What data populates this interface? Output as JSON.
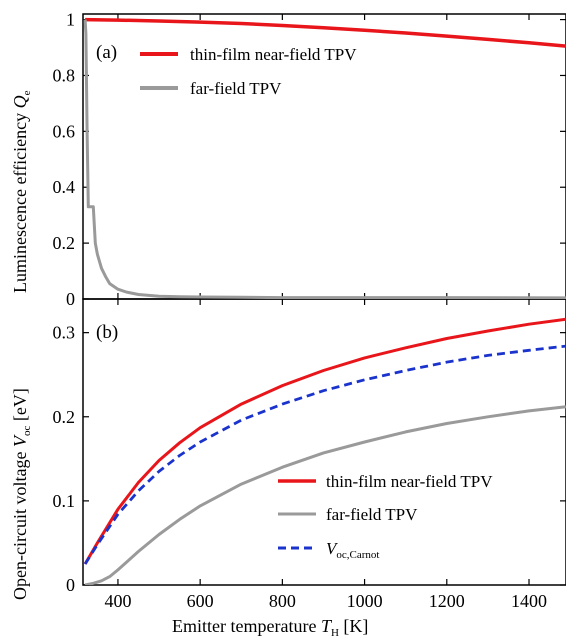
{
  "figure": {
    "xlabel_main": "Emitter temperature ",
    "xlabel_var": "T",
    "xlabel_sub": "H",
    "xlabel_unit": " [K]"
  },
  "colors": {
    "near_field": "#e8161b",
    "far_field": "#9a9a9a",
    "carnot": "#1a33cc",
    "axis": "#000000"
  },
  "chart_data": [
    {
      "type": "line",
      "panel_label": "(a)",
      "ylabel_main": "Luminescence efficiency ",
      "ylabel_var": "Q",
      "ylabel_sub": "e",
      "xlim": [
        315,
        1490
      ],
      "ylim": [
        0,
        1.02
      ],
      "yticks": [
        0,
        0.2,
        0.4,
        0.6,
        0.8,
        1
      ],
      "ytick_labels": [
        "0",
        "0.2",
        "0.4",
        "0.6",
        "0.8",
        "1"
      ],
      "legend": "top-center",
      "series": [
        {
          "name": "thin-film near-field TPV",
          "color": "#e8161b",
          "style": "solid",
          "x": [
            320,
            400,
            500,
            600,
            700,
            800,
            900,
            1000,
            1100,
            1200,
            1300,
            1400,
            1490
          ],
          "y": [
            1.0,
            0.998,
            0.995,
            0.991,
            0.986,
            0.979,
            0.971,
            0.962,
            0.952,
            0.941,
            0.929,
            0.917,
            0.905
          ]
        },
        {
          "name": "far-field TPV",
          "color": "#9a9a9a",
          "style": "solid",
          "x": [
            320,
            322,
            325,
            328,
            331,
            333,
            335,
            338,
            340,
            345,
            350,
            360,
            370,
            380,
            400,
            420,
            450,
            500,
            550,
            600,
            700,
            800,
            1000,
            1200,
            1490
          ],
          "y": [
            1.0,
            0.95,
            0.6,
            0.33,
            0.33,
            0.33,
            0.33,
            0.33,
            0.33,
            0.2,
            0.16,
            0.11,
            0.08,
            0.055,
            0.035,
            0.025,
            0.016,
            0.01,
            0.008,
            0.007,
            0.006,
            0.005,
            0.005,
            0.005,
            0.004
          ]
        }
      ]
    },
    {
      "type": "line",
      "panel_label": "(b)",
      "ylabel_main": "Open-circuit voltage ",
      "ylabel_var": "V",
      "ylabel_sub": "oc",
      "ylabel_unit": " [eV]",
      "xlim": [
        315,
        1490
      ],
      "ylim": [
        0,
        0.34
      ],
      "xticks": [
        400,
        600,
        800,
        1000,
        1200,
        1400
      ],
      "xtick_labels": [
        "400",
        "600",
        "800",
        "1000",
        "1200",
        "1400"
      ],
      "yticks": [
        0,
        0.1,
        0.2,
        0.3
      ],
      "ytick_labels": [
        "0",
        "0.1",
        "0.2",
        "0.3"
      ],
      "legend": "bottom-right",
      "series": [
        {
          "name": "thin-film near-field TPV",
          "color": "#e8161b",
          "style": "solid",
          "x": [
            320,
            350,
            400,
            450,
            500,
            550,
            600,
            700,
            800,
            900,
            1000,
            1100,
            1200,
            1300,
            1400,
            1490
          ],
          "y": [
            0.025,
            0.05,
            0.09,
            0.122,
            0.148,
            0.169,
            0.187,
            0.215,
            0.237,
            0.255,
            0.27,
            0.282,
            0.293,
            0.302,
            0.31,
            0.316
          ]
        },
        {
          "name": "far-field TPV",
          "color": "#9a9a9a",
          "style": "solid",
          "x": [
            320,
            340,
            360,
            380,
            400,
            450,
            500,
            550,
            600,
            700,
            800,
            900,
            1000,
            1100,
            1200,
            1300,
            1400,
            1490
          ],
          "y": [
            0.0,
            0.002,
            0.005,
            0.01,
            0.018,
            0.04,
            0.06,
            0.078,
            0.094,
            0.12,
            0.14,
            0.157,
            0.17,
            0.182,
            0.192,
            0.2,
            0.207,
            0.212
          ]
        },
        {
          "name": "V",
          "name_sub": "oc,Carnot",
          "color": "#1a33cc",
          "style": "dashed",
          "x": [
            320,
            350,
            400,
            450,
            500,
            550,
            600,
            700,
            800,
            900,
            1000,
            1100,
            1200,
            1300,
            1400,
            1490
          ],
          "y": [
            0.025,
            0.048,
            0.084,
            0.112,
            0.135,
            0.154,
            0.17,
            0.196,
            0.215,
            0.231,
            0.244,
            0.255,
            0.265,
            0.273,
            0.279,
            0.284
          ]
        }
      ]
    }
  ]
}
